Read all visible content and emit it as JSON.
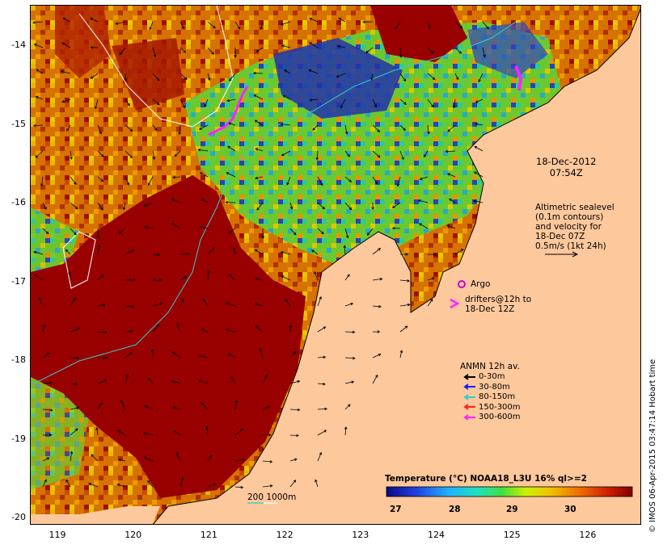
{
  "map": {
    "date_line1": "18-Dec-2012",
    "date_line2": "07:54Z",
    "altimetric": [
      "Altimetric sealevel",
      "(0.1m contours)",
      "and velocity for",
      "18-Dec 07Z",
      "0.5m/s (1kt 24h)"
    ],
    "argo_label": "Argo",
    "drifters": [
      "drifters@12h to",
      "18-Dec 12Z"
    ],
    "anmn_title": "ANMN 12h av.",
    "anmn_items": [
      {
        "label": "0-30m",
        "color": "#000000"
      },
      {
        "label": "30-80m",
        "color": "#1a1aff"
      },
      {
        "label": "80-150m",
        "color": "#33cccc"
      },
      {
        "label": "150-300m",
        "color": "#ff2020"
      },
      {
        "label": "300-600m",
        "color": "#ff22ff"
      }
    ],
    "colorbar_title": "Temperature (°C) NOAA18_L3U 16% ql>=2",
    "colorbar_ticks": [
      "27",
      "28",
      "29",
      "30"
    ],
    "isobath_label": "200  1000m",
    "credit": "© IMOS 06-Apr-2015 03:47:14 Hobart time",
    "lon_ticks": [
      "119",
      "120",
      "121",
      "122",
      "123",
      "124",
      "125",
      "126"
    ],
    "lat_ticks": [
      "-14",
      "-15",
      "-16",
      "-17",
      "-18",
      "-19",
      "-20"
    ],
    "colors": {
      "land": "#fdc89c",
      "warm": "#990000",
      "orange": "#dd7a00",
      "yellow": "#e8d000",
      "green": "#33cc33",
      "cyan": "#22cccc",
      "blue": "#2233aa",
      "magenta": "#ff22ff",
      "argo": "#cc00cc"
    }
  }
}
